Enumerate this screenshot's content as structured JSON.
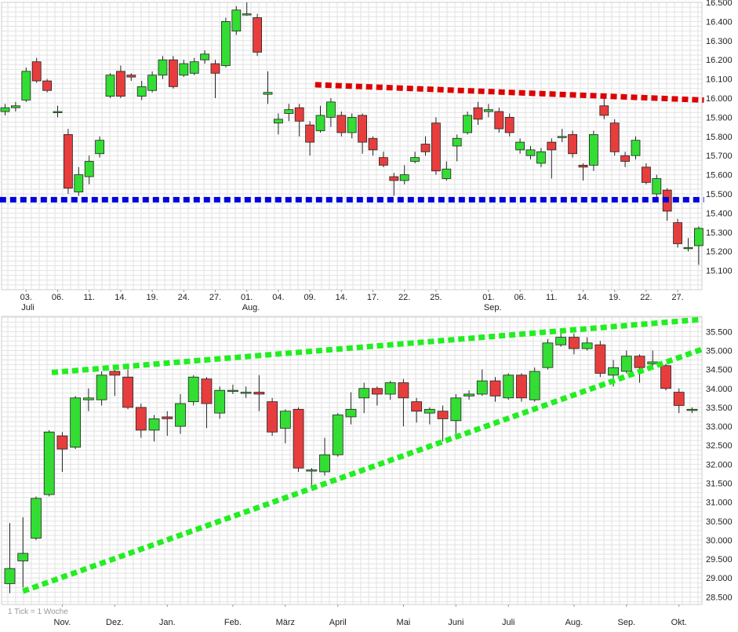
{
  "colors": {
    "up": "#33dd33",
    "down": "#e83d3d",
    "blue_line": "#0000dd",
    "red_line": "#dd0000",
    "green_line": "#22ee22",
    "grid": "#e2e2e2",
    "axis_text": "#222222"
  },
  "footer": {
    "note": "1 Tick = 1 Woche"
  },
  "chart_data": [
    {
      "type": "candlestick",
      "name": "daily",
      "ylim": [
        15.0,
        16.5
      ],
      "y_ticks": [
        "16.500",
        "16.400",
        "16.300",
        "16.200",
        "16.100",
        "16.000",
        "15.900",
        "15.800",
        "15.700",
        "15.600",
        "15.500",
        "15.400",
        "15.300",
        "15.200",
        "15.100"
      ],
      "x_labels": [
        {
          "label": "03.",
          "index": 2
        },
        {
          "label": "06.",
          "index": 5
        },
        {
          "label": "11.",
          "index": 8
        },
        {
          "label": "14.",
          "index": 11
        },
        {
          "label": "19.",
          "index": 14
        },
        {
          "label": "24.",
          "index": 17
        },
        {
          "label": "27.",
          "index": 20
        },
        {
          "label": "01.",
          "index": 23
        },
        {
          "label": "04.",
          "index": 26
        },
        {
          "label": "09.",
          "index": 29
        },
        {
          "label": "14.",
          "index": 32
        },
        {
          "label": "17.",
          "index": 35
        },
        {
          "label": "22.",
          "index": 38
        },
        {
          "label": "25.",
          "index": 41
        },
        {
          "label": "01.",
          "index": 46
        },
        {
          "label": "06.",
          "index": 49
        },
        {
          "label": "11.",
          "index": 52
        },
        {
          "label": "14.",
          "index": 55
        },
        {
          "label": "19.",
          "index": 58
        },
        {
          "label": "22.",
          "index": 61
        },
        {
          "label": "27.",
          "index": 64
        }
      ],
      "month_labels": [
        {
          "label": "Juli",
          "index": 2
        },
        {
          "label": "Aug.",
          "index": 23
        },
        {
          "label": "Sep.",
          "index": 46
        }
      ],
      "candles": [
        [
          15.93,
          15.95,
          15.97,
          15.91
        ],
        [
          15.95,
          15.96,
          15.98,
          15.93
        ],
        [
          15.99,
          16.14,
          16.16,
          15.98
        ],
        [
          16.19,
          16.09,
          16.21,
          16.08
        ],
        [
          16.09,
          16.04,
          16.1,
          16.03
        ],
        [
          15.93,
          15.93,
          15.96,
          15.9
        ],
        [
          15.81,
          15.53,
          15.84,
          15.5
        ],
        [
          15.51,
          15.6,
          15.64,
          15.49
        ],
        [
          15.59,
          15.67,
          15.7,
          15.55
        ],
        [
          15.71,
          15.78,
          15.8,
          15.69
        ],
        [
          16.01,
          16.12,
          16.13,
          16.0
        ],
        [
          16.14,
          16.01,
          16.17,
          16.0
        ],
        [
          16.12,
          16.11,
          16.13,
          16.09
        ],
        [
          16.01,
          16.06,
          16.09,
          15.99
        ],
        [
          16.04,
          16.12,
          16.14,
          16.03
        ],
        [
          16.12,
          16.2,
          16.22,
          16.1
        ],
        [
          16.2,
          16.06,
          16.22,
          16.05
        ],
        [
          16.12,
          16.18,
          16.2,
          16.11
        ],
        [
          16.13,
          16.19,
          16.21,
          16.12
        ],
        [
          16.2,
          16.23,
          16.25,
          16.18
        ],
        [
          16.18,
          16.13,
          16.2,
          16.0
        ],
        [
          16.17,
          16.4,
          16.42,
          16.16
        ],
        [
          16.35,
          16.46,
          16.48,
          16.33
        ],
        [
          16.44,
          16.44,
          16.5,
          16.43
        ],
        [
          16.42,
          16.24,
          16.44,
          16.22
        ],
        [
          16.02,
          16.03,
          16.14,
          15.97
        ],
        [
          15.87,
          15.89,
          15.92,
          15.81
        ],
        [
          15.92,
          15.94,
          15.97,
          15.88
        ],
        [
          15.95,
          15.88,
          15.97,
          15.8
        ],
        [
          15.86,
          15.77,
          15.88,
          15.7
        ],
        [
          15.83,
          15.91,
          15.96,
          15.82
        ],
        [
          15.9,
          15.98,
          16.0,
          15.85
        ],
        [
          15.91,
          15.82,
          15.93,
          15.8
        ],
        [
          15.82,
          15.9,
          15.92,
          15.79
        ],
        [
          15.91,
          15.77,
          15.92,
          15.71
        ],
        [
          15.79,
          15.73,
          15.8,
          15.7
        ],
        [
          15.69,
          15.65,
          15.72,
          15.64
        ],
        [
          15.59,
          15.57,
          15.61,
          15.49
        ],
        [
          15.57,
          15.6,
          15.65,
          15.55
        ],
        [
          15.67,
          15.69,
          15.72,
          15.66
        ],
        [
          15.76,
          15.72,
          15.8,
          15.7
        ],
        [
          15.87,
          15.62,
          15.9,
          15.6
        ],
        [
          15.58,
          15.63,
          15.67,
          15.57
        ],
        [
          15.75,
          15.79,
          15.81,
          15.67
        ],
        [
          15.82,
          15.91,
          15.93,
          15.81
        ],
        [
          15.95,
          15.89,
          15.98,
          15.86
        ],
        [
          15.93,
          15.94,
          15.97,
          15.9
        ],
        [
          15.93,
          15.84,
          15.95,
          15.82
        ],
        [
          15.9,
          15.82,
          15.92,
          15.8
        ],
        [
          15.73,
          15.77,
          15.79,
          15.71
        ],
        [
          15.7,
          15.73,
          15.75,
          15.68
        ],
        [
          15.66,
          15.72,
          15.74,
          15.64
        ],
        [
          15.77,
          15.73,
          15.79,
          15.58
        ],
        [
          15.8,
          15.8,
          15.84,
          15.77
        ],
        [
          15.81,
          15.71,
          15.83,
          15.69
        ],
        [
          15.65,
          15.64,
          15.66,
          15.57
        ],
        [
          15.65,
          15.81,
          15.83,
          15.62
        ],
        [
          15.96,
          15.91,
          16.02,
          15.89
        ],
        [
          15.87,
          15.72,
          15.89,
          15.7
        ],
        [
          15.7,
          15.67,
          15.72,
          15.64
        ],
        [
          15.7,
          15.78,
          15.8,
          15.68
        ],
        [
          15.64,
          15.56,
          15.66,
          15.55
        ],
        [
          15.5,
          15.58,
          15.6,
          15.48
        ],
        [
          15.52,
          15.41,
          15.53,
          15.36
        ],
        [
          15.35,
          15.24,
          15.37,
          15.22
        ],
        [
          15.22,
          15.22,
          15.27,
          15.2
        ],
        [
          15.23,
          15.32,
          15.33,
          15.13
        ]
      ],
      "lines": [
        {
          "color_key": "blue_line",
          "points": [
            [
              -0.5,
              15.47
            ],
            [
              66.5,
              15.47
            ]
          ]
        },
        {
          "color_key": "red_line",
          "points": [
            [
              29.5,
              16.07
            ],
            [
              66.5,
              15.99
            ]
          ]
        }
      ]
    },
    {
      "type": "candlestick",
      "name": "weekly",
      "ylim": [
        28.3,
        35.9
      ],
      "y_ticks": [
        "35.500",
        "35.000",
        "34.500",
        "34.000",
        "33.500",
        "33.000",
        "32.500",
        "32.000",
        "31.500",
        "31.000",
        "30.500",
        "30.000",
        "29.500",
        "29.000",
        "28.500"
      ],
      "x_labels": [
        {
          "label": "Nov.",
          "index": 4
        },
        {
          "label": "Dez.",
          "index": 8
        },
        {
          "label": "Jan.",
          "index": 12
        },
        {
          "label": "Feb.",
          "index": 17
        },
        {
          "label": "März",
          "index": 21
        },
        {
          "label": "April",
          "index": 25
        },
        {
          "label": "Mai",
          "index": 30
        },
        {
          "label": "Juni",
          "index": 34
        },
        {
          "label": "Juli",
          "index": 38
        },
        {
          "label": "Aug.",
          "index": 43
        },
        {
          "label": "Sep.",
          "index": 47
        },
        {
          "label": "Okt.",
          "index": 51
        }
      ],
      "candles": [
        [
          28.85,
          29.25,
          30.45,
          28.6
        ],
        [
          29.45,
          29.65,
          30.6,
          28.75
        ],
        [
          30.05,
          31.1,
          31.15,
          30.0
        ],
        [
          31.2,
          32.85,
          32.9,
          31.15
        ],
        [
          32.75,
          32.4,
          32.85,
          31.8
        ],
        [
          32.45,
          33.75,
          33.8,
          32.4
        ],
        [
          33.7,
          33.75,
          34.0,
          33.4
        ],
        [
          33.7,
          34.35,
          34.45,
          33.55
        ],
        [
          34.45,
          34.35,
          34.55,
          33.8
        ],
        [
          34.3,
          33.5,
          34.5,
          33.45
        ],
        [
          33.5,
          32.9,
          33.6,
          32.7
        ],
        [
          32.9,
          33.2,
          33.3,
          32.6
        ],
        [
          33.25,
          33.2,
          33.4,
          32.75
        ],
        [
          33.0,
          33.6,
          33.85,
          32.8
        ],
        [
          33.65,
          34.3,
          34.35,
          33.55
        ],
        [
          34.25,
          33.6,
          34.3,
          32.95
        ],
        [
          33.35,
          33.95,
          34.05,
          33.2
        ],
        [
          33.95,
          33.95,
          34.1,
          33.85
        ],
        [
          33.9,
          33.9,
          34.05,
          33.75
        ],
        [
          33.9,
          33.85,
          34.35,
          33.4
        ],
        [
          33.65,
          32.85,
          33.75,
          32.75
        ],
        [
          32.95,
          33.4,
          33.45,
          32.55
        ],
        [
          33.45,
          31.9,
          33.5,
          31.8
        ],
        [
          31.85,
          31.85,
          31.9,
          31.4
        ],
        [
          31.8,
          32.25,
          32.7,
          31.7
        ],
        [
          32.25,
          33.3,
          33.35,
          32.2
        ],
        [
          33.25,
          33.45,
          33.9,
          33.05
        ],
        [
          33.75,
          34.0,
          34.15,
          33.35
        ],
        [
          34.0,
          33.85,
          34.05,
          33.55
        ],
        [
          33.85,
          34.15,
          34.2,
          33.7
        ],
        [
          34.15,
          33.75,
          34.25,
          33.0
        ],
        [
          33.65,
          33.4,
          33.75,
          33.1
        ],
        [
          33.35,
          33.45,
          33.5,
          33.05
        ],
        [
          33.4,
          33.2,
          33.55,
          32.6
        ],
        [
          33.15,
          33.75,
          33.85,
          32.8
        ],
        [
          33.8,
          33.85,
          33.95,
          33.7
        ],
        [
          33.85,
          34.2,
          34.5,
          33.8
        ],
        [
          34.2,
          33.8,
          34.3,
          33.65
        ],
        [
          33.75,
          34.35,
          34.4,
          33.7
        ],
        [
          34.35,
          33.75,
          34.4,
          33.65
        ],
        [
          33.7,
          34.45,
          34.55,
          33.65
        ],
        [
          34.55,
          35.2,
          35.3,
          34.5
        ],
        [
          35.15,
          35.35,
          35.55,
          35.1
        ],
        [
          35.35,
          35.05,
          35.45,
          34.9
        ],
        [
          35.05,
          35.2,
          35.35,
          35.0
        ],
        [
          35.15,
          34.4,
          35.25,
          34.3
        ],
        [
          34.35,
          34.55,
          34.75,
          34.05
        ],
        [
          34.45,
          34.85,
          35.0,
          34.4
        ],
        [
          34.85,
          34.55,
          34.9,
          34.15
        ],
        [
          34.65,
          34.7,
          35.0,
          34.5
        ],
        [
          34.6,
          34.0,
          34.65,
          33.95
        ],
        [
          33.9,
          33.55,
          34.0,
          33.35
        ],
        [
          33.45,
          33.45,
          33.5,
          33.35
        ]
      ],
      "lines": [
        {
          "color_key": "green_line",
          "points": [
            [
              3.2,
              34.42
            ],
            [
              52.7,
              35.82
            ]
          ]
        },
        {
          "color_key": "green_line",
          "points": [
            [
              1.0,
              28.65
            ],
            [
              52.9,
              35.05
            ]
          ]
        }
      ]
    }
  ]
}
